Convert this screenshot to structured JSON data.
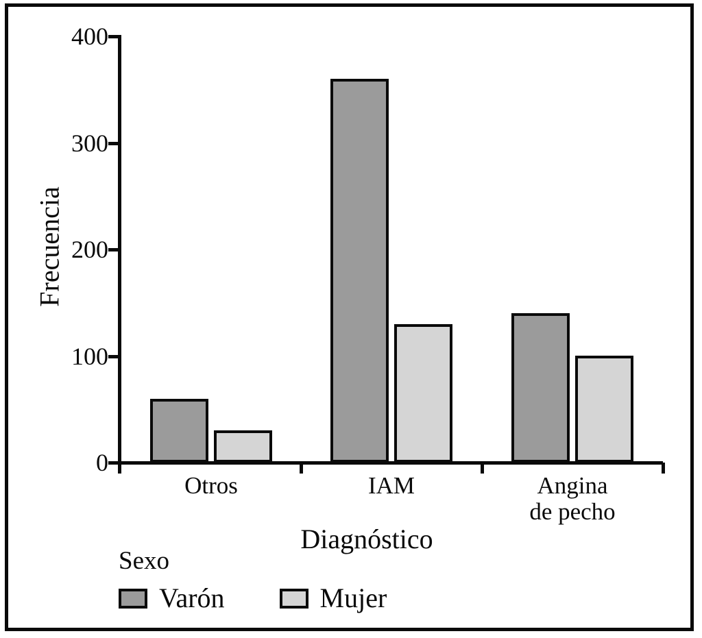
{
  "chart_data": {
    "type": "bar",
    "title": "",
    "xlabel": "Diagnóstico",
    "ylabel": "Frecuencia",
    "categories": [
      "Otros",
      "IAM",
      "Angina\nde pecho"
    ],
    "series": [
      {
        "name": "Varón",
        "values": [
          60,
          360,
          140
        ],
        "color": "#9b9b9b"
      },
      {
        "name": "Mujer",
        "values": [
          30,
          130,
          100
        ],
        "color": "#d5d5d5"
      }
    ],
    "ylim": [
      0,
      400
    ],
    "yticks": [
      0,
      100,
      200,
      300,
      400
    ],
    "grid": false,
    "legend": {
      "title": "Sexo",
      "position": "bottom-left"
    },
    "colors": {
      "axis": "#0a0a0a",
      "bar_border": "#0a0a0a",
      "background": "#ffffff"
    }
  }
}
